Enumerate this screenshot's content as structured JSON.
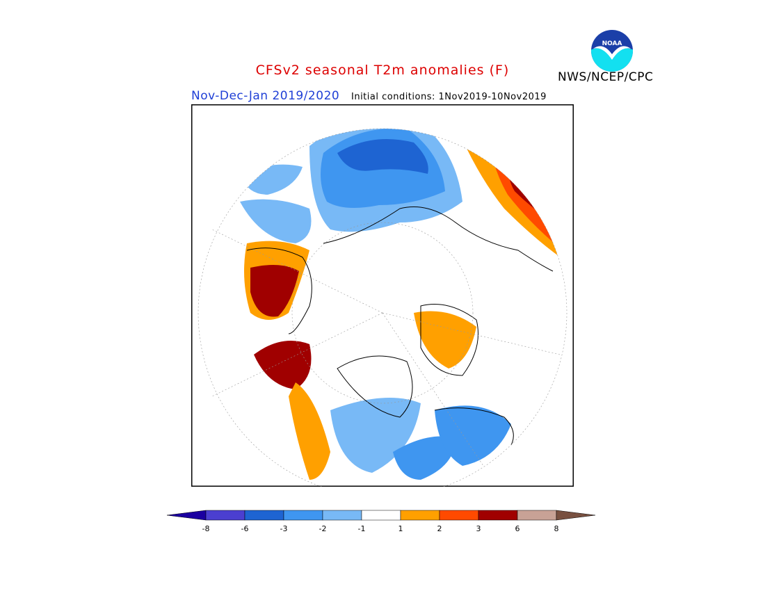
{
  "header": {
    "title": "CFSv2 seasonal T2m anomalies (F)",
    "period": "Nov-Dec-Jan 2019/2020",
    "initial_conditions": "Initial conditions: 1Nov2019-10Nov2019",
    "organization": "NWS/NCEP/CPC",
    "logo_text": "NOAA"
  },
  "colors": {
    "title": "#dd0000",
    "period": "#1f3fd6"
  },
  "colorbar": {
    "labels": [
      "-8",
      "-6",
      "-3",
      "-2",
      "-1",
      "1",
      "2",
      "3",
      "6",
      "8"
    ],
    "colors": [
      "#1b00a0",
      "#4b3fd0",
      "#1e64d2",
      "#3f96f0",
      "#78b9f6",
      "#ffffff",
      "#ffa000",
      "#ff4a00",
      "#a00000",
      "#c8a296",
      "#785040"
    ]
  },
  "map": {
    "projection": "north-polar-stereographic",
    "grid": true
  }
}
